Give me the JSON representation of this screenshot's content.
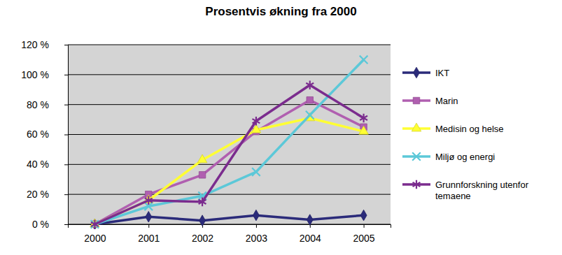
{
  "chart_data": {
    "type": "line",
    "title": "Prosentvis økning fra 2000",
    "categories": [
      "2000",
      "2001",
      "2002",
      "2003",
      "2004",
      "2005"
    ],
    "series": [
      {
        "name": "IKT",
        "color": "#2b2b7a",
        "marker": "diamond",
        "values": [
          0,
          5,
          2.5,
          6,
          3,
          6
        ]
      },
      {
        "name": "Marin",
        "color": "#b05fb0",
        "marker": "square",
        "values": [
          0,
          20,
          33,
          62,
          83,
          65
        ]
      },
      {
        "name": "Medisin og helse",
        "color": "#ffff33",
        "marker": "triangle",
        "values": [
          0,
          16,
          43,
          63,
          71,
          62
        ]
      },
      {
        "name": "Miljø og energi",
        "color": "#5cc8d8",
        "marker": "x",
        "values": [
          0,
          12,
          19,
          35,
          73,
          110
        ]
      },
      {
        "name": "Grunnforskning utenfor temaene",
        "color": "#7b2c8e",
        "marker": "star",
        "values": [
          0,
          16,
          15,
          69,
          93,
          71
        ]
      }
    ],
    "ylim": [
      0,
      120
    ],
    "yticks": [
      {
        "value": 0,
        "label": "0 %"
      },
      {
        "value": 20,
        "label": "20 %"
      },
      {
        "value": 40,
        "label": "40 %"
      },
      {
        "value": 60,
        "label": "60 %"
      },
      {
        "value": 80,
        "label": "80 %"
      },
      {
        "value": 100,
        "label": "100 %"
      },
      {
        "value": 120,
        "label": "120 %"
      }
    ],
    "grid": true,
    "legend": "right"
  }
}
